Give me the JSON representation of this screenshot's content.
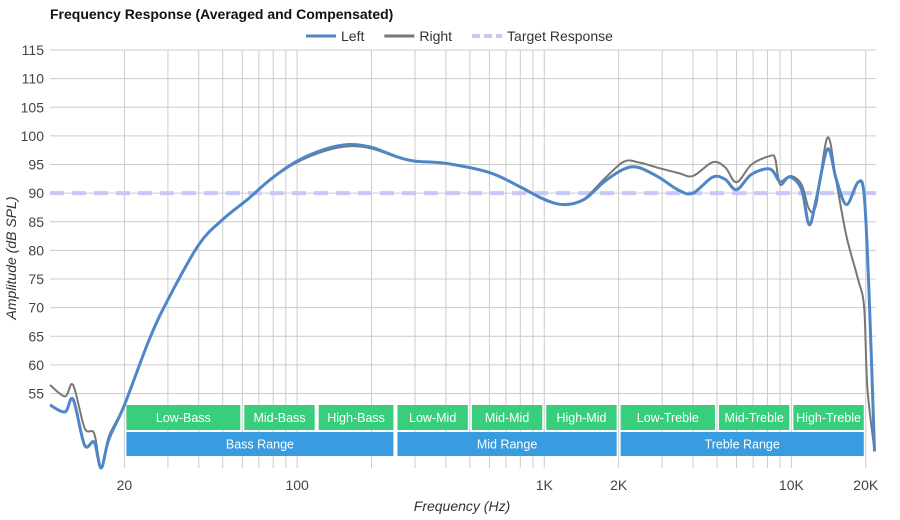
{
  "chart_data": {
    "type": "line",
    "title": "Frequency Response (Averaged and Compensated)",
    "xlabel": "Frequency (Hz)",
    "ylabel": "Amplitude (dB SPL)",
    "x_scale": "log",
    "xlim": [
      10,
      22000
    ],
    "ylim": [
      42,
      115
    ],
    "grid": true,
    "legend_placement": "top-center",
    "x_ticks": [
      {
        "value": 20,
        "label": "20"
      },
      {
        "value": 100,
        "label": "100"
      },
      {
        "value": 1000,
        "label": "1K"
      },
      {
        "value": 2000,
        "label": "2K"
      },
      {
        "value": 10000,
        "label": "10K"
      },
      {
        "value": 20000,
        "label": "20K"
      }
    ],
    "y_ticks": [
      55,
      60,
      65,
      70,
      75,
      80,
      85,
      90,
      95,
      100,
      105,
      110,
      115
    ],
    "series": [
      {
        "name": "Left",
        "color": "#4f86c6",
        "style": "solid",
        "points": [
          [
            10,
            53
          ],
          [
            11.5,
            51.8
          ],
          [
            12.4,
            54
          ],
          [
            13.8,
            46
          ],
          [
            15.1,
            46.5
          ],
          [
            16.1,
            42
          ],
          [
            17.3,
            47
          ],
          [
            20,
            53
          ],
          [
            25.2,
            64.4
          ],
          [
            30,
            71.4
          ],
          [
            40,
            81
          ],
          [
            50,
            85.4
          ],
          [
            63,
            88.9
          ],
          [
            78,
            92.4
          ],
          [
            100,
            95.6
          ],
          [
            130,
            97.7
          ],
          [
            162,
            98.5
          ],
          [
            200,
            98
          ],
          [
            256,
            96.3
          ],
          [
            300,
            95.6
          ],
          [
            400,
            95.2
          ],
          [
            600,
            93.6
          ],
          [
            790,
            91.2
          ],
          [
            1000,
            88.9
          ],
          [
            1200,
            88
          ],
          [
            1450,
            88.9
          ],
          [
            1750,
            92
          ],
          [
            2100,
            94.2
          ],
          [
            2400,
            94.5
          ],
          [
            2900,
            92.8
          ],
          [
            3500,
            90.5
          ],
          [
            4000,
            90
          ],
          [
            4800,
            92.8
          ],
          [
            5400,
            92.4
          ],
          [
            6000,
            90.6
          ],
          [
            6900,
            93.3
          ],
          [
            8200,
            94.2
          ],
          [
            9000,
            92
          ],
          [
            9900,
            92.8
          ],
          [
            11000,
            90.6
          ],
          [
            11800,
            84.5
          ],
          [
            12600,
            88.9
          ],
          [
            14000,
            97.7
          ],
          [
            15200,
            92.4
          ],
          [
            16700,
            88
          ],
          [
            18600,
            91.9
          ],
          [
            19700,
            89.7
          ],
          [
            20600,
            73
          ],
          [
            21700,
            44.9
          ]
        ]
      },
      {
        "name": "Right",
        "color": "#777777",
        "style": "solid",
        "points": [
          [
            10,
            56.5
          ],
          [
            11.5,
            54.5
          ],
          [
            12.4,
            56.5
          ],
          [
            13.8,
            49
          ],
          [
            15.1,
            48
          ],
          [
            16.1,
            42
          ],
          [
            17.3,
            47.5
          ],
          [
            20,
            53
          ],
          [
            25.2,
            64.4
          ],
          [
            30,
            71.4
          ],
          [
            40,
            81
          ],
          [
            50,
            85.4
          ],
          [
            63,
            88.9
          ],
          [
            78,
            92.4
          ],
          [
            100,
            95.4
          ],
          [
            130,
            97.4
          ],
          [
            162,
            98.2
          ],
          [
            200,
            97.8
          ],
          [
            256,
            96.2
          ],
          [
            300,
            95.5
          ],
          [
            400,
            95.2
          ],
          [
            600,
            93.6
          ],
          [
            790,
            91.2
          ],
          [
            1000,
            89
          ],
          [
            1200,
            88
          ],
          [
            1450,
            89
          ],
          [
            1750,
            92.5
          ],
          [
            2100,
            95.5
          ],
          [
            2400,
            95.4
          ],
          [
            2900,
            94.4
          ],
          [
            3500,
            93.5
          ],
          [
            4000,
            93
          ],
          [
            4800,
            95.4
          ],
          [
            5400,
            94.5
          ],
          [
            6000,
            91.9
          ],
          [
            6900,
            95
          ],
          [
            8200,
            96.5
          ],
          [
            8600,
            96
          ],
          [
            9000,
            91.5
          ],
          [
            9900,
            93
          ],
          [
            11000,
            91.5
          ],
          [
            11800,
            87.2
          ],
          [
            12600,
            88
          ],
          [
            14000,
            99.7
          ],
          [
            15200,
            92
          ],
          [
            16700,
            82.5
          ],
          [
            18600,
            75
          ],
          [
            19700,
            70
          ],
          [
            20300,
            56
          ],
          [
            21700,
            45
          ]
        ]
      },
      {
        "name": "Target Response",
        "color": "#c8c8f8",
        "style": "dashed",
        "points": [
          [
            10,
            90
          ],
          [
            22000,
            90
          ]
        ]
      }
    ],
    "bands": [
      {
        "label": "Low-Bass",
        "from": 20,
        "to": 60,
        "row": 1
      },
      {
        "label": "Mid-Bass",
        "from": 60,
        "to": 120,
        "row": 1
      },
      {
        "label": "High-Bass",
        "from": 120,
        "to": 250,
        "row": 1
      },
      {
        "label": "Low-Mid",
        "from": 250,
        "to": 500,
        "row": 1
      },
      {
        "label": "Mid-Mid",
        "from": 500,
        "to": 1000,
        "row": 1
      },
      {
        "label": "High-Mid",
        "from": 1000,
        "to": 2000,
        "row": 1
      },
      {
        "label": "Low-Treble",
        "from": 2000,
        "to": 5000,
        "row": 1
      },
      {
        "label": "Mid-Treble",
        "from": 5000,
        "to": 10000,
        "row": 1
      },
      {
        "label": "High-Treble",
        "from": 10000,
        "to": 20000,
        "row": 1
      },
      {
        "label": "Bass Range",
        "from": 20,
        "to": 250,
        "row": 2
      },
      {
        "label": "Mid Range",
        "from": 250,
        "to": 2000,
        "row": 2
      },
      {
        "label": "Treble Range",
        "from": 2000,
        "to": 20000,
        "row": 2
      }
    ],
    "band_colors": {
      "row1": "#33cc77",
      "row2": "#3399e0"
    }
  }
}
